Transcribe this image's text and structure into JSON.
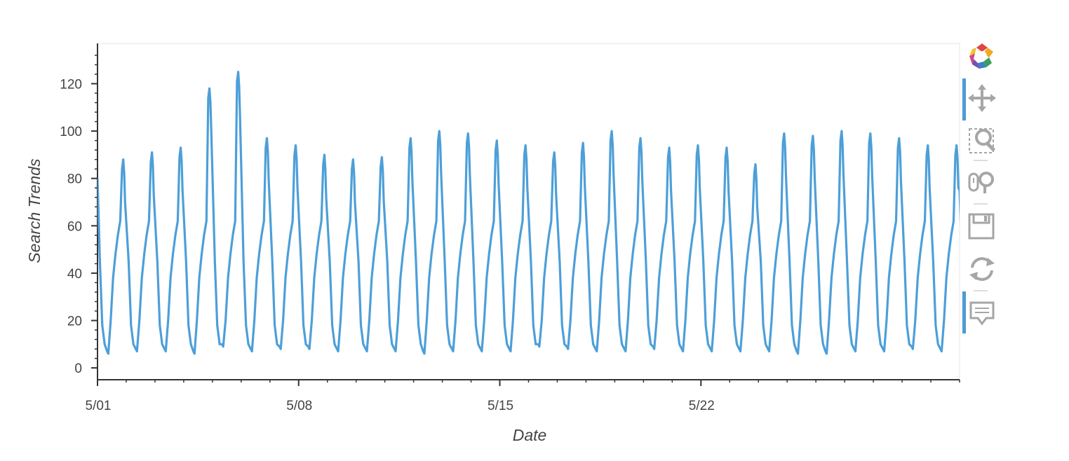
{
  "chart_data": {
    "type": "line",
    "title": "",
    "xlabel": "Date",
    "ylabel": "Search Trends",
    "x_range": [
      "2017-05-01",
      "2017-05-31"
    ],
    "ylim": [
      -5,
      137
    ],
    "yticks": [
      0,
      20,
      40,
      60,
      80,
      100,
      120
    ],
    "xticks": [
      {
        "date": "2017-05-01",
        "label": "5/01"
      },
      {
        "date": "2017-05-08",
        "label": "5/08"
      },
      {
        "date": "2017-05-15",
        "label": "5/15"
      },
      {
        "date": "2017-05-22",
        "label": "5/22"
      }
    ],
    "grid": false,
    "line_color": "#4d9fd8",
    "series": [
      {
        "color": "#4d9fd8",
        "daily_peaks": [
          {
            "date": "2017-05-01",
            "peak": 88,
            "trough": 6
          },
          {
            "date": "2017-05-02",
            "peak": 91,
            "trough": 7
          },
          {
            "date": "2017-05-03",
            "peak": 93,
            "trough": 7
          },
          {
            "date": "2017-05-04",
            "peak": 118,
            "trough": 6
          },
          {
            "date": "2017-05-05",
            "peak": 125,
            "trough": 9
          },
          {
            "date": "2017-05-06",
            "peak": 97,
            "trough": 7
          },
          {
            "date": "2017-05-07",
            "peak": 94,
            "trough": 8
          },
          {
            "date": "2017-05-08",
            "peak": 90,
            "trough": 8
          },
          {
            "date": "2017-05-09",
            "peak": 88,
            "trough": 7
          },
          {
            "date": "2017-05-10",
            "peak": 89,
            "trough": 7
          },
          {
            "date": "2017-05-11",
            "peak": 97,
            "trough": 7
          },
          {
            "date": "2017-05-12",
            "peak": 100,
            "trough": 6
          },
          {
            "date": "2017-05-13",
            "peak": 99,
            "trough": 7
          },
          {
            "date": "2017-05-14",
            "peak": 96,
            "trough": 7
          },
          {
            "date": "2017-05-15",
            "peak": 94,
            "trough": 7
          },
          {
            "date": "2017-05-16",
            "peak": 91,
            "trough": 9
          },
          {
            "date": "2017-05-17",
            "peak": 95,
            "trough": 8
          },
          {
            "date": "2017-05-18",
            "peak": 100,
            "trough": 7
          },
          {
            "date": "2017-05-19",
            "peak": 97,
            "trough": 7
          },
          {
            "date": "2017-05-20",
            "peak": 93,
            "trough": 8
          },
          {
            "date": "2017-05-21",
            "peak": 94,
            "trough": 7
          },
          {
            "date": "2017-05-22",
            "peak": 93,
            "trough": 7
          },
          {
            "date": "2017-05-23",
            "peak": 86,
            "trough": 7
          },
          {
            "date": "2017-05-24",
            "peak": 99,
            "trough": 7
          },
          {
            "date": "2017-05-25",
            "peak": 98,
            "trough": 6
          },
          {
            "date": "2017-05-26",
            "peak": 100,
            "trough": 6
          },
          {
            "date": "2017-05-27",
            "peak": 99,
            "trough": 7
          },
          {
            "date": "2017-05-28",
            "peak": 97,
            "trough": 7
          },
          {
            "date": "2017-05-29",
            "peak": 94,
            "trough": 8
          },
          {
            "date": "2017-05-30",
            "peak": 94,
            "trough": 7
          }
        ]
      }
    ]
  },
  "toolbar": {
    "tools": [
      {
        "name": "bokeh-logo-icon",
        "active": false
      },
      {
        "name": "pan-tool-icon",
        "active": true
      },
      {
        "name": "box-zoom-tool-icon",
        "active": false
      },
      {
        "name": "wheel-zoom-tool-icon",
        "active": false
      },
      {
        "name": "save-tool-icon",
        "active": false
      },
      {
        "name": "reset-tool-icon",
        "active": false
      },
      {
        "name": "hover-tool-icon",
        "active": true
      }
    ]
  }
}
